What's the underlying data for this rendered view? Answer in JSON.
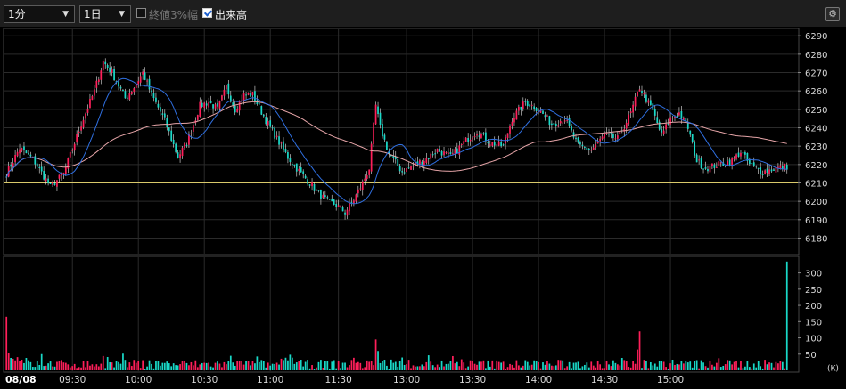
{
  "toolbar": {
    "interval": "1分",
    "period": "1日",
    "band_label": "終値3%幅",
    "band_checked": false,
    "volume_label": "出来高",
    "volume_checked": true
  },
  "colors": {
    "up": "#ff1f5a",
    "down": "#19d9c8",
    "wick": "#e8e8e8",
    "ma_short": "#2f6fe0",
    "ma_long": "#e6a5a8",
    "ref_line": "#d9c96a",
    "grid": "#2b2b2b",
    "axis_text": "#d8d8d8"
  },
  "chart_data": {
    "type": "candlestick",
    "date_label": "08/08",
    "x_ticks": [
      "09:30",
      "10:00",
      "10:30",
      "11:00",
      "11:30",
      "13:00",
      "13:30",
      "14:00",
      "14:30",
      "15:00"
    ],
    "price_ticks": [
      6180,
      6190,
      6200,
      6210,
      6220,
      6230,
      6240,
      6250,
      6260,
      6270,
      6280,
      6290
    ],
    "price_range": [
      6172,
      6293
    ],
    "reference_price": 6210,
    "volume_ticks": [
      50,
      100,
      150,
      200,
      250,
      300
    ],
    "volume_unit": "(K)",
    "volume_range": [
      0,
      340
    ],
    "anchors": [
      [
        0,
        6215
      ],
      [
        6,
        6229
      ],
      [
        12,
        6223
      ],
      [
        20,
        6208
      ],
      [
        26,
        6215
      ],
      [
        34,
        6242
      ],
      [
        40,
        6260
      ],
      [
        44,
        6276
      ],
      [
        48,
        6270
      ],
      [
        54,
        6256
      ],
      [
        58,
        6262
      ],
      [
        62,
        6270
      ],
      [
        66,
        6258
      ],
      [
        72,
        6244
      ],
      [
        78,
        6224
      ],
      [
        82,
        6232
      ],
      [
        88,
        6252
      ],
      [
        92,
        6254
      ],
      [
        96,
        6250
      ],
      [
        100,
        6262
      ],
      [
        104,
        6250
      ],
      [
        108,
        6258
      ],
      [
        112,
        6258
      ],
      [
        118,
        6244
      ],
      [
        124,
        6232
      ],
      [
        128,
        6224
      ],
      [
        134,
        6215
      ],
      [
        138,
        6210
      ],
      [
        142,
        6204
      ],
      [
        146,
        6200
      ],
      [
        150,
        6198
      ],
      [
        154,
        6194
      ],
      [
        158,
        6201
      ],
      [
        162,
        6210
      ],
      [
        165,
        6218
      ],
      [
        168,
        6252
      ],
      [
        170,
        6240
      ],
      [
        174,
        6226
      ],
      [
        180,
        6216
      ],
      [
        186,
        6220
      ],
      [
        192,
        6224
      ],
      [
        196,
        6228
      ],
      [
        202,
        6224
      ],
      [
        208,
        6232
      ],
      [
        214,
        6238
      ],
      [
        220,
        6232
      ],
      [
        226,
        6230
      ],
      [
        230,
        6245
      ],
      [
        236,
        6254
      ],
      [
        242,
        6250
      ],
      [
        248,
        6242
      ],
      [
        254,
        6245
      ],
      [
        260,
        6230
      ],
      [
        266,
        6228
      ],
      [
        272,
        6236
      ],
      [
        278,
        6234
      ],
      [
        284,
        6248
      ],
      [
        288,
        6262
      ],
      [
        294,
        6249
      ],
      [
        298,
        6236
      ],
      [
        302,
        6245
      ],
      [
        306,
        6248
      ],
      [
        310,
        6240
      ],
      [
        314,
        6222
      ],
      [
        318,
        6218
      ],
      [
        324,
        6220
      ],
      [
        330,
        6222
      ],
      [
        334,
        6227
      ],
      [
        338,
        6220
      ],
      [
        344,
        6216
      ],
      [
        350,
        6218
      ],
      [
        355,
        6219
      ]
    ],
    "volume_spikes": [
      [
        0,
        165
      ],
      [
        168,
        95
      ],
      [
        288,
        120
      ],
      [
        355,
        335
      ]
    ],
    "ma_short_period": 5,
    "ma_long_period": 25
  }
}
